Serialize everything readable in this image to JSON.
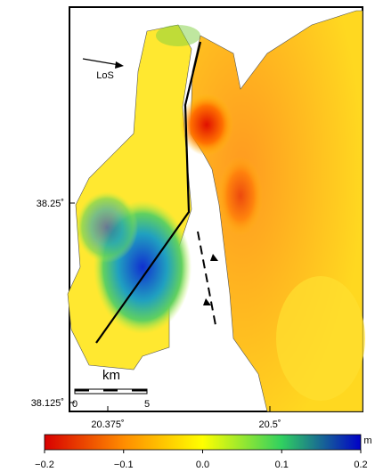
{
  "map": {
    "lat_labels": [
      "38.25˚",
      "38.125˚"
    ],
    "lon_labels": [
      "20.375˚",
      "20.5˚"
    ],
    "arrow_label": "LoS",
    "scale_bar": {
      "unit": "km",
      "labels": [
        "0",
        "5"
      ]
    },
    "colorbar": {
      "ticks": [
        "−0.2",
        "−0.1",
        "0.0",
        "0.1",
        "0.2"
      ],
      "unit": "m"
    }
  }
}
